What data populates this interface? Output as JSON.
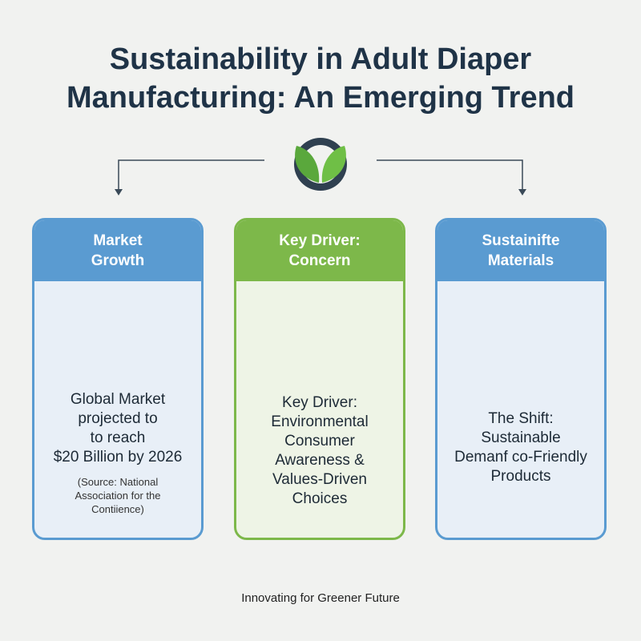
{
  "header": {
    "title_lines": [
      "Sustainability in Adult Diaper",
      "Manufacturing: An Emerging Trend"
    ]
  },
  "cards": [
    {
      "title_lines": [
        "Market",
        "Growth"
      ],
      "body_lines": [
        "Global Market",
        "projected to",
        "to reach",
        "$20 Billion by 2026"
      ],
      "source_lines": [
        "(Source: National",
        "Association for the",
        "Contiience)"
      ]
    },
    {
      "title_lines": [
        "Key Driver:",
        "Concern"
      ],
      "body_lines": [
        "Key Driver:",
        "Environmental",
        "Consumer",
        "Awareness &",
        "Values-Driven",
        "Choices"
      ]
    },
    {
      "title_lines": [
        "Sustainifte",
        "Materials"
      ],
      "body_lines": [
        "The Shift:",
        "Sustainable",
        "Demanf co-Friendly",
        "Products"
      ]
    }
  ],
  "footer": {
    "text": "Innovating for Greener Future"
  }
}
